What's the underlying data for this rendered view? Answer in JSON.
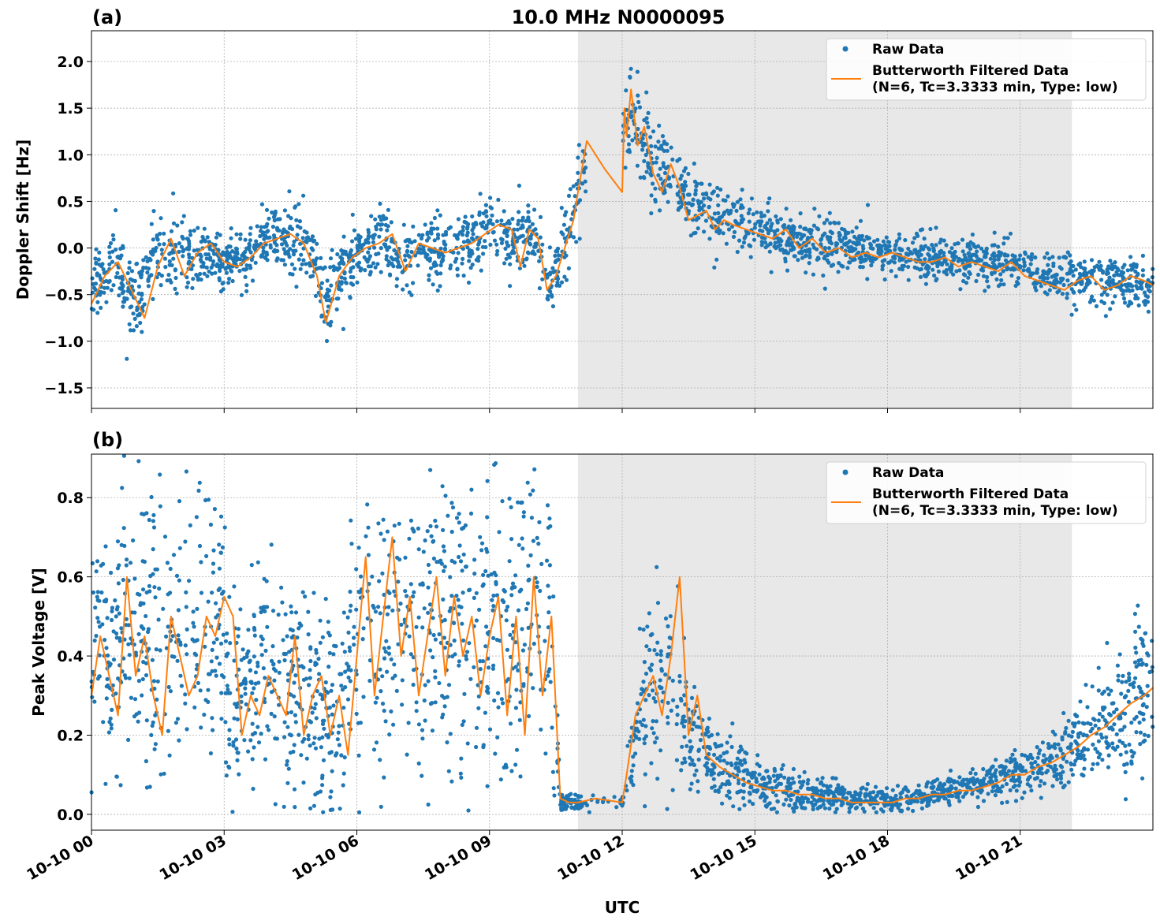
{
  "chart_data": {
    "type": "scatter",
    "title": "10.0 MHz N0000095",
    "xlabel": "UTC",
    "x_ticks": [
      "10-10 00",
      "10-10 03",
      "10-10 06",
      "10-10 09",
      "10-10 12",
      "10-10 15",
      "10-10 18",
      "10-10 21"
    ],
    "xlim_hours": [
      0,
      24
    ],
    "shaded_span_hours": [
      11,
      22.17
    ],
    "colors": {
      "raw": "#1f77b4",
      "filtered": "#ff7f0e",
      "shade": "#e8e8e8"
    },
    "legend": {
      "raw": "Raw Data",
      "filtered_line1": "Butterworth Filtered Data",
      "filtered_line2": "(N=6, Tc=3.3333 min, Type: low)",
      "placement": "upper right"
    },
    "panels": [
      {
        "label": "(a)",
        "ylabel": "Doppler Shift [Hz]",
        "ylim": [
          -1.72,
          2.33
        ],
        "yticks": [
          -1.5,
          -1.0,
          -0.5,
          0.0,
          0.5,
          1.0,
          1.5,
          2.0
        ],
        "ytick_labels": [
          "−1.5",
          "−1.0",
          "−0.5",
          "0.0",
          "0.5",
          "1.0",
          "1.5",
          "2.0"
        ],
        "filtered": {
          "x": [
            0,
            0.3,
            0.6,
            0.9,
            1.2,
            1.5,
            1.8,
            2.1,
            2.4,
            2.7,
            3.0,
            3.3,
            3.6,
            3.9,
            4.2,
            4.5,
            4.8,
            5.1,
            5.3,
            5.6,
            5.9,
            6.2,
            6.5,
            6.8,
            7.1,
            7.4,
            7.7,
            8.0,
            8.3,
            8.6,
            8.9,
            9.2,
            9.5,
            9.7,
            9.9,
            10.1,
            10.3,
            10.5,
            10.7,
            10.9,
            11.0,
            11.2,
            11.6,
            12.0,
            12.05,
            12.1,
            12.2,
            12.35,
            12.5,
            12.7,
            12.9,
            13.1,
            13.3,
            13.5,
            13.7,
            13.9,
            14.1,
            14.3,
            14.5,
            14.8,
            15.1,
            15.4,
            15.7,
            16.0,
            16.3,
            16.6,
            16.9,
            17.2,
            17.5,
            17.8,
            18.1,
            18.4,
            18.7,
            19.0,
            19.3,
            19.6,
            19.9,
            20.2,
            20.5,
            20.8,
            21.1,
            21.4,
            21.7,
            22.0,
            22.3,
            22.6,
            22.9,
            23.2,
            23.5,
            23.8,
            24.0
          ],
          "y": [
            -0.6,
            -0.3,
            -0.15,
            -0.45,
            -0.75,
            -0.2,
            0.1,
            -0.3,
            -0.05,
            0.05,
            -0.15,
            -0.2,
            -0.1,
            0.05,
            0.1,
            0.15,
            0.05,
            -0.3,
            -0.8,
            -0.3,
            -0.1,
            0.0,
            0.05,
            0.15,
            -0.25,
            0.05,
            0.0,
            -0.05,
            0.0,
            0.05,
            0.15,
            0.25,
            0.2,
            -0.2,
            0.2,
            0.1,
            -0.45,
            -0.3,
            0.0,
            0.3,
            0.6,
            1.15,
            0.85,
            0.6,
            1.5,
            1.2,
            1.7,
            1.1,
            1.3,
            0.8,
            0.6,
            0.9,
            0.65,
            0.3,
            0.35,
            0.4,
            0.2,
            0.3,
            0.25,
            0.2,
            0.15,
            0.1,
            0.2,
            0.0,
            0.1,
            -0.05,
            0.0,
            -0.1,
            -0.05,
            -0.1,
            -0.05,
            -0.1,
            -0.15,
            -0.15,
            -0.1,
            -0.2,
            -0.15,
            -0.2,
            -0.25,
            -0.15,
            -0.3,
            -0.35,
            -0.4,
            -0.45,
            -0.35,
            -0.3,
            -0.45,
            -0.4,
            -0.3,
            -0.35,
            -0.4
          ]
        },
        "raw_band": {
          "x": [
            0,
            0.5,
            1.0,
            1.5,
            2.0,
            2.5,
            3.0,
            3.5,
            4.0,
            4.5,
            5.0,
            5.3,
            5.6,
            6.0,
            6.5,
            7.0,
            7.5,
            8.0,
            8.5,
            9.0,
            9.5,
            10.0,
            10.4,
            10.8,
            11.0,
            12.0,
            12.2,
            12.5,
            13.0,
            13.5,
            14.0,
            14.5,
            15.0,
            16.0,
            17.0,
            18.0,
            19.0,
            20.0,
            21.0,
            22.0,
            23.0,
            24.0
          ],
          "center": [
            -0.45,
            -0.2,
            -0.6,
            0.0,
            -0.1,
            -0.05,
            -0.15,
            -0.1,
            0.1,
            0.15,
            -0.05,
            -0.6,
            -0.3,
            -0.05,
            0.05,
            -0.15,
            0.0,
            -0.05,
            0.05,
            0.25,
            0.1,
            0.15,
            -0.45,
            0.2,
            0.7,
            1.2,
            1.5,
            1.1,
            0.8,
            0.5,
            0.35,
            0.3,
            0.2,
            0.05,
            0.0,
            -0.05,
            -0.1,
            -0.15,
            -0.2,
            -0.35,
            -0.35,
            -0.4
          ],
          "half_width": [
            0.35,
            0.35,
            0.45,
            0.35,
            0.35,
            0.3,
            0.3,
            0.3,
            0.3,
            0.35,
            0.35,
            0.45,
            0.35,
            0.3,
            0.35,
            0.35,
            0.3,
            0.3,
            0.3,
            0.3,
            0.3,
            0.3,
            0.3,
            0.4,
            0.4,
            0.4,
            0.45,
            0.4,
            0.35,
            0.3,
            0.3,
            0.28,
            0.25,
            0.25,
            0.25,
            0.22,
            0.22,
            0.22,
            0.22,
            0.22,
            0.25,
            0.25
          ]
        }
      },
      {
        "label": "(b)",
        "ylabel": "Peak Voltage [V]",
        "ylim": [
          -0.04,
          0.91
        ],
        "yticks": [
          0.0,
          0.2,
          0.4,
          0.6,
          0.8
        ],
        "ytick_labels": [
          "0.0",
          "0.2",
          "0.4",
          "0.6",
          "0.8"
        ],
        "filtered": {
          "x": [
            0,
            0.2,
            0.4,
            0.6,
            0.8,
            1.0,
            1.2,
            1.4,
            1.6,
            1.8,
            2.0,
            2.2,
            2.4,
            2.6,
            2.8,
            3.0,
            3.2,
            3.4,
            3.6,
            3.8,
            4.0,
            4.2,
            4.4,
            4.6,
            4.8,
            5.0,
            5.2,
            5.4,
            5.6,
            5.8,
            6.0,
            6.2,
            6.4,
            6.6,
            6.8,
            7.0,
            7.2,
            7.4,
            7.6,
            7.8,
            8.0,
            8.2,
            8.4,
            8.6,
            8.8,
            9.0,
            9.2,
            9.4,
            9.6,
            9.8,
            10.0,
            10.2,
            10.4,
            10.6,
            10.8,
            11.0,
            11.4,
            12.0,
            12.1,
            12.3,
            12.5,
            12.7,
            12.9,
            13.1,
            13.3,
            13.5,
            13.7,
            13.9,
            14.2,
            14.5,
            14.8,
            15.1,
            15.4,
            15.7,
            16.0,
            16.3,
            16.6,
            16.9,
            17.2,
            17.5,
            17.8,
            18.1,
            18.4,
            18.7,
            19.0,
            19.3,
            19.6,
            19.9,
            20.2,
            20.5,
            20.8,
            21.1,
            21.4,
            21.7,
            22.0,
            22.3,
            22.6,
            22.9,
            23.2,
            23.5,
            23.8,
            24.0
          ],
          "y": [
            0.3,
            0.45,
            0.35,
            0.25,
            0.6,
            0.35,
            0.45,
            0.3,
            0.2,
            0.5,
            0.4,
            0.3,
            0.35,
            0.5,
            0.45,
            0.55,
            0.5,
            0.2,
            0.3,
            0.25,
            0.35,
            0.3,
            0.25,
            0.45,
            0.2,
            0.3,
            0.35,
            0.2,
            0.3,
            0.15,
            0.4,
            0.65,
            0.3,
            0.5,
            0.7,
            0.4,
            0.55,
            0.3,
            0.45,
            0.6,
            0.35,
            0.55,
            0.4,
            0.5,
            0.3,
            0.45,
            0.55,
            0.25,
            0.5,
            0.2,
            0.6,
            0.3,
            0.5,
            0.04,
            0.03,
            0.03,
            0.04,
            0.03,
            0.1,
            0.25,
            0.3,
            0.35,
            0.25,
            0.4,
            0.6,
            0.2,
            0.3,
            0.15,
            0.12,
            0.1,
            0.08,
            0.07,
            0.06,
            0.06,
            0.05,
            0.05,
            0.04,
            0.04,
            0.03,
            0.03,
            0.03,
            0.03,
            0.04,
            0.04,
            0.05,
            0.05,
            0.06,
            0.06,
            0.07,
            0.08,
            0.1,
            0.1,
            0.12,
            0.13,
            0.15,
            0.17,
            0.2,
            0.22,
            0.25,
            0.28,
            0.3,
            0.32
          ]
        },
        "raw_band": {
          "x": [
            0,
            1.0,
            2.0,
            3.0,
            3.1,
            4.0,
            5.0,
            5.5,
            6.0,
            7.0,
            8.0,
            9.0,
            10.0,
            10.4,
            10.6,
            11.0,
            12.0,
            12.1,
            12.5,
            13.0,
            13.5,
            14.0,
            15.0,
            16.0,
            17.0,
            18.0,
            19.0,
            20.0,
            21.0,
            22.0,
            23.0,
            24.0
          ],
          "center": [
            0.4,
            0.45,
            0.45,
            0.5,
            0.3,
            0.35,
            0.3,
            0.25,
            0.45,
            0.5,
            0.5,
            0.45,
            0.45,
            0.4,
            0.03,
            0.03,
            0.03,
            0.08,
            0.3,
            0.35,
            0.2,
            0.13,
            0.08,
            0.06,
            0.04,
            0.035,
            0.05,
            0.07,
            0.11,
            0.15,
            0.22,
            0.35
          ],
          "half_width": [
            0.25,
            0.3,
            0.3,
            0.3,
            0.2,
            0.25,
            0.25,
            0.2,
            0.35,
            0.35,
            0.35,
            0.35,
            0.35,
            0.35,
            0.02,
            0.02,
            0.02,
            0.05,
            0.2,
            0.25,
            0.15,
            0.1,
            0.06,
            0.05,
            0.03,
            0.025,
            0.03,
            0.04,
            0.06,
            0.08,
            0.12,
            0.2
          ]
        }
      }
    ]
  }
}
